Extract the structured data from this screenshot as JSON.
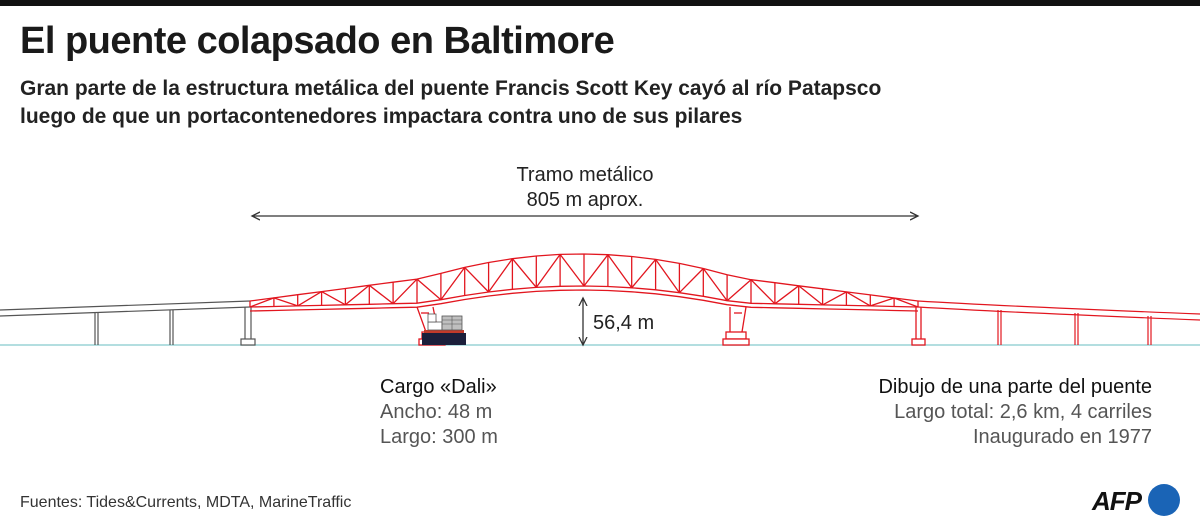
{
  "header": {
    "title": "El puente colapsado en Baltimore",
    "subtitle_line1": "Gran parte de la estructura metálica del puente Francis Scott Key cayó al río Patapsco",
    "subtitle_line2": "luego de que un portacontenedores impactara contra uno de sus pilares"
  },
  "diagram": {
    "span": {
      "line1": "Tramo metálico",
      "line2": "805 m aprox."
    },
    "clearance": "56,4 m",
    "cargo": {
      "title": "Cargo «Dali»",
      "width": "Ancho: 48 m",
      "length": "Largo: 300 m"
    },
    "drawing": {
      "title": "Dibujo de una parte del puente",
      "total": "Largo total: 2,6 km, 4 carriles",
      "opened": "Inaugurado en 1977"
    },
    "colors": {
      "truss": "#e2161f",
      "deck": "#555555",
      "water": "#9ad4d6",
      "ship_hull": "#1b1f3b"
    }
  },
  "footer": {
    "sources": "Fuentes: Tides&Currents, MDTA, MarineTraffic",
    "logo": "AFP",
    "logo_color": "#1a64b6"
  }
}
